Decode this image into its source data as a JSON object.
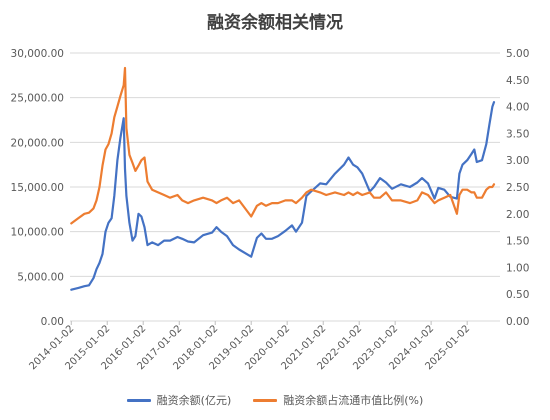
{
  "chart_data": {
    "type": "line",
    "title": "融资余额相关情况",
    "x_tick_labels": [
      "2014-01-02",
      "2015-01-02",
      "2016-01-02",
      "2017-01-02",
      "2018-01-02",
      "2019-01-02",
      "2020-01-02",
      "2021-01-02",
      "2022-01-02",
      "2023-01-02",
      "2024-01-02",
      "2025-01-02"
    ],
    "y_left_ticks": [
      "0.00",
      "5,000.00",
      "10,000.00",
      "15,000.00",
      "20,000.00",
      "25,000.00",
      "30,000.00"
    ],
    "y_right_ticks": [
      "0.00",
      "0.50",
      "1.00",
      "1.50",
      "2.00",
      "2.50",
      "3.00",
      "3.50",
      "4.00",
      "4.50",
      "5.00"
    ],
    "ylim_left": [
      0,
      30000
    ],
    "ylim_right": [
      0,
      5
    ],
    "grid": "horizontal",
    "legend_position": "bottom",
    "series": [
      {
        "name": "融资余额(亿元)",
        "axis": "left",
        "color": "#4472C4",
        "points": [
          [
            "2014-01-02",
            3500
          ],
          [
            "2014-03-15",
            3700
          ],
          [
            "2014-05-15",
            3900
          ],
          [
            "2014-07-01",
            4000
          ],
          [
            "2014-08-15",
            4800
          ],
          [
            "2014-09-15",
            5800
          ],
          [
            "2014-10-15",
            6500
          ],
          [
            "2014-11-15",
            7500
          ],
          [
            "2014-12-15",
            10000
          ],
          [
            "2015-01-15",
            11000
          ],
          [
            "2015-02-15",
            11500
          ],
          [
            "2015-03-15",
            14000
          ],
          [
            "2015-04-15",
            18000
          ],
          [
            "2015-05-15",
            20500
          ],
          [
            "2015-06-18",
            22700
          ],
          [
            "2015-07-01",
            17000
          ],
          [
            "2015-07-15",
            14000
          ],
          [
            "2015-08-15",
            11000
          ],
          [
            "2015-09-15",
            9000
          ],
          [
            "2015-10-15",
            9500
          ],
          [
            "2015-11-15",
            12000
          ],
          [
            "2015-12-15",
            11700
          ],
          [
            "2016-01-15",
            10500
          ],
          [
            "2016-02-15",
            8500
          ],
          [
            "2016-04-01",
            8800
          ],
          [
            "2016-06-01",
            8500
          ],
          [
            "2016-08-01",
            9000
          ],
          [
            "2016-10-01",
            9000
          ],
          [
            "2016-12-15",
            9400
          ],
          [
            "2017-02-01",
            9200
          ],
          [
            "2017-04-01",
            8900
          ],
          [
            "2017-06-01",
            8800
          ],
          [
            "2017-09-01",
            9600
          ],
          [
            "2017-12-01",
            9900
          ],
          [
            "2018-01-15",
            10500
          ],
          [
            "2018-03-01",
            10000
          ],
          [
            "2018-05-01",
            9500
          ],
          [
            "2018-07-01",
            8500
          ],
          [
            "2018-09-01",
            8000
          ],
          [
            "2018-11-01",
            7600
          ],
          [
            "2019-01-02",
            7200
          ],
          [
            "2019-03-01",
            9300
          ],
          [
            "2019-04-15",
            9800
          ],
          [
            "2019-06-01",
            9200
          ],
          [
            "2019-08-01",
            9200
          ],
          [
            "2019-10-01",
            9500
          ],
          [
            "2019-12-15",
            10100
          ],
          [
            "2020-02-20",
            10700
          ],
          [
            "2020-04-01",
            10000
          ],
          [
            "2020-06-01",
            11000
          ],
          [
            "2020-07-15",
            14000
          ],
          [
            "2020-09-01",
            14500
          ],
          [
            "2020-12-01",
            15400
          ],
          [
            "2021-02-01",
            15300
          ],
          [
            "2021-05-01",
            16500
          ],
          [
            "2021-08-01",
            17500
          ],
          [
            "2021-09-15",
            18300
          ],
          [
            "2021-11-01",
            17500
          ],
          [
            "2021-12-15",
            17200
          ],
          [
            "2022-02-01",
            16500
          ],
          [
            "2022-04-20",
            14500
          ],
          [
            "2022-06-01",
            15000
          ],
          [
            "2022-08-01",
            16000
          ],
          [
            "2022-10-01",
            15500
          ],
          [
            "2022-12-01",
            14800
          ],
          [
            "2023-03-01",
            15300
          ],
          [
            "2023-06-01",
            15000
          ],
          [
            "2023-08-15",
            15500
          ],
          [
            "2023-10-01",
            16000
          ],
          [
            "2023-12-01",
            15400
          ],
          [
            "2024-02-05",
            13700
          ],
          [
            "2024-03-15",
            14900
          ],
          [
            "2024-05-15",
            14700
          ],
          [
            "2024-07-15",
            13900
          ],
          [
            "2024-09-20",
            13700
          ],
          [
            "2024-10-15",
            16500
          ],
          [
            "2024-11-15",
            17500
          ],
          [
            "2025-01-02",
            18000
          ],
          [
            "2025-02-15",
            18700
          ],
          [
            "2025-03-15",
            19200
          ],
          [
            "2025-04-10",
            17800
          ],
          [
            "2025-06-01",
            18000
          ],
          [
            "2025-07-15",
            19800
          ],
          [
            "2025-08-15",
            22000
          ],
          [
            "2025-09-15",
            24000
          ],
          [
            "2025-10-01",
            24500
          ]
        ]
      },
      {
        "name": "融资余额占流通市值比例(%)",
        "axis": "right",
        "color": "#ED7D31",
        "points": [
          [
            "2014-01-02",
            1.82
          ],
          [
            "2014-03-15",
            1.92
          ],
          [
            "2014-05-15",
            2.0
          ],
          [
            "2014-07-01",
            2.02
          ],
          [
            "2014-08-15",
            2.1
          ],
          [
            "2014-09-15",
            2.25
          ],
          [
            "2014-10-15",
            2.5
          ],
          [
            "2014-11-15",
            2.9
          ],
          [
            "2014-12-15",
            3.2
          ],
          [
            "2015-01-15",
            3.3
          ],
          [
            "2015-02-15",
            3.5
          ],
          [
            "2015-03-15",
            3.8
          ],
          [
            "2015-04-15",
            4.0
          ],
          [
            "2015-05-15",
            4.2
          ],
          [
            "2015-06-18",
            4.4
          ],
          [
            "2015-07-01",
            4.72
          ],
          [
            "2015-07-15",
            3.6
          ],
          [
            "2015-08-15",
            3.1
          ],
          [
            "2015-09-15",
            2.95
          ],
          [
            "2015-10-15",
            2.8
          ],
          [
            "2015-11-15",
            2.9
          ],
          [
            "2015-12-15",
            3.0
          ],
          [
            "2016-01-15",
            3.05
          ],
          [
            "2016-02-15",
            2.6
          ],
          [
            "2016-04-01",
            2.45
          ],
          [
            "2016-06-01",
            2.4
          ],
          [
            "2016-08-01",
            2.35
          ],
          [
            "2016-10-01",
            2.3
          ],
          [
            "2016-12-15",
            2.35
          ],
          [
            "2017-02-01",
            2.25
          ],
          [
            "2017-04-01",
            2.2
          ],
          [
            "2017-06-01",
            2.25
          ],
          [
            "2017-09-01",
            2.3
          ],
          [
            "2017-12-01",
            2.25
          ],
          [
            "2018-01-15",
            2.2
          ],
          [
            "2018-03-01",
            2.25
          ],
          [
            "2018-05-01",
            2.3
          ],
          [
            "2018-07-01",
            2.2
          ],
          [
            "2018-09-01",
            2.25
          ],
          [
            "2018-11-01",
            2.1
          ],
          [
            "2019-01-02",
            1.95
          ],
          [
            "2019-03-01",
            2.15
          ],
          [
            "2019-04-15",
            2.2
          ],
          [
            "2019-06-01",
            2.15
          ],
          [
            "2019-08-01",
            2.2
          ],
          [
            "2019-10-01",
            2.2
          ],
          [
            "2019-12-15",
            2.25
          ],
          [
            "2020-02-20",
            2.25
          ],
          [
            "2020-04-01",
            2.2
          ],
          [
            "2020-06-01",
            2.3
          ],
          [
            "2020-07-15",
            2.4
          ],
          [
            "2020-09-01",
            2.45
          ],
          [
            "2020-12-01",
            2.4
          ],
          [
            "2021-02-01",
            2.35
          ],
          [
            "2021-05-01",
            2.4
          ],
          [
            "2021-08-01",
            2.35
          ],
          [
            "2021-09-15",
            2.4
          ],
          [
            "2021-11-01",
            2.35
          ],
          [
            "2021-12-15",
            2.4
          ],
          [
            "2022-02-01",
            2.35
          ],
          [
            "2022-04-20",
            2.4
          ],
          [
            "2022-06-01",
            2.3
          ],
          [
            "2022-08-01",
            2.3
          ],
          [
            "2022-10-01",
            2.4
          ],
          [
            "2022-12-01",
            2.25
          ],
          [
            "2023-03-01",
            2.25
          ],
          [
            "2023-06-01",
            2.2
          ],
          [
            "2023-08-15",
            2.25
          ],
          [
            "2023-10-01",
            2.4
          ],
          [
            "2023-12-01",
            2.35
          ],
          [
            "2024-02-05",
            2.2
          ],
          [
            "2024-03-15",
            2.25
          ],
          [
            "2024-05-15",
            2.3
          ],
          [
            "2024-07-15",
            2.35
          ],
          [
            "2024-09-20",
            2.0
          ],
          [
            "2024-10-15",
            2.35
          ],
          [
            "2024-11-15",
            2.45
          ],
          [
            "2025-01-02",
            2.45
          ],
          [
            "2025-02-15",
            2.4
          ],
          [
            "2025-03-15",
            2.4
          ],
          [
            "2025-04-10",
            2.3
          ],
          [
            "2025-06-01",
            2.3
          ],
          [
            "2025-07-15",
            2.45
          ],
          [
            "2025-08-15",
            2.5
          ],
          [
            "2025-09-15",
            2.5
          ],
          [
            "2025-10-01",
            2.55
          ]
        ]
      }
    ]
  }
}
